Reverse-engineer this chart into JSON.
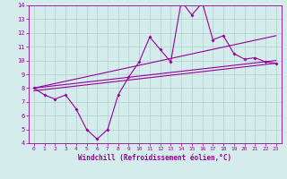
{
  "title": "",
  "xlabel": "Windchill (Refroidissement éolien,°C)",
  "x": [
    0,
    1,
    2,
    3,
    4,
    5,
    6,
    7,
    8,
    9,
    10,
    11,
    12,
    13,
    14,
    15,
    16,
    17,
    18,
    19,
    20,
    21,
    22,
    23
  ],
  "line1": [
    8.0,
    7.5,
    7.2,
    7.5,
    6.5,
    5.0,
    4.3,
    5.0,
    7.5,
    8.8,
    9.9,
    11.7,
    10.8,
    9.9,
    14.3,
    13.3,
    14.2,
    11.5,
    11.8,
    10.5,
    10.1,
    10.2,
    9.9,
    9.8
  ],
  "trend_upper_start": 8.0,
  "trend_upper_end": 11.8,
  "trend_mid_start": 8.0,
  "trend_mid_end": 10.0,
  "trend_lower_start": 7.8,
  "trend_lower_end": 9.8,
  "line_color": "#990099",
  "bg_color": "#d4ecec",
  "grid_color": "#b0d0d0",
  "ylim": [
    4,
    14
  ],
  "xlim": [
    -0.5,
    23.5
  ],
  "yticks": [
    4,
    5,
    6,
    7,
    8,
    9,
    10,
    11,
    12,
    13,
    14
  ],
  "xticks": [
    0,
    1,
    2,
    3,
    4,
    5,
    6,
    7,
    8,
    9,
    10,
    11,
    12,
    13,
    14,
    15,
    16,
    17,
    18,
    19,
    20,
    21,
    22,
    23
  ],
  "tick_fontsize": 4.5,
  "xlabel_fontsize": 5.5
}
